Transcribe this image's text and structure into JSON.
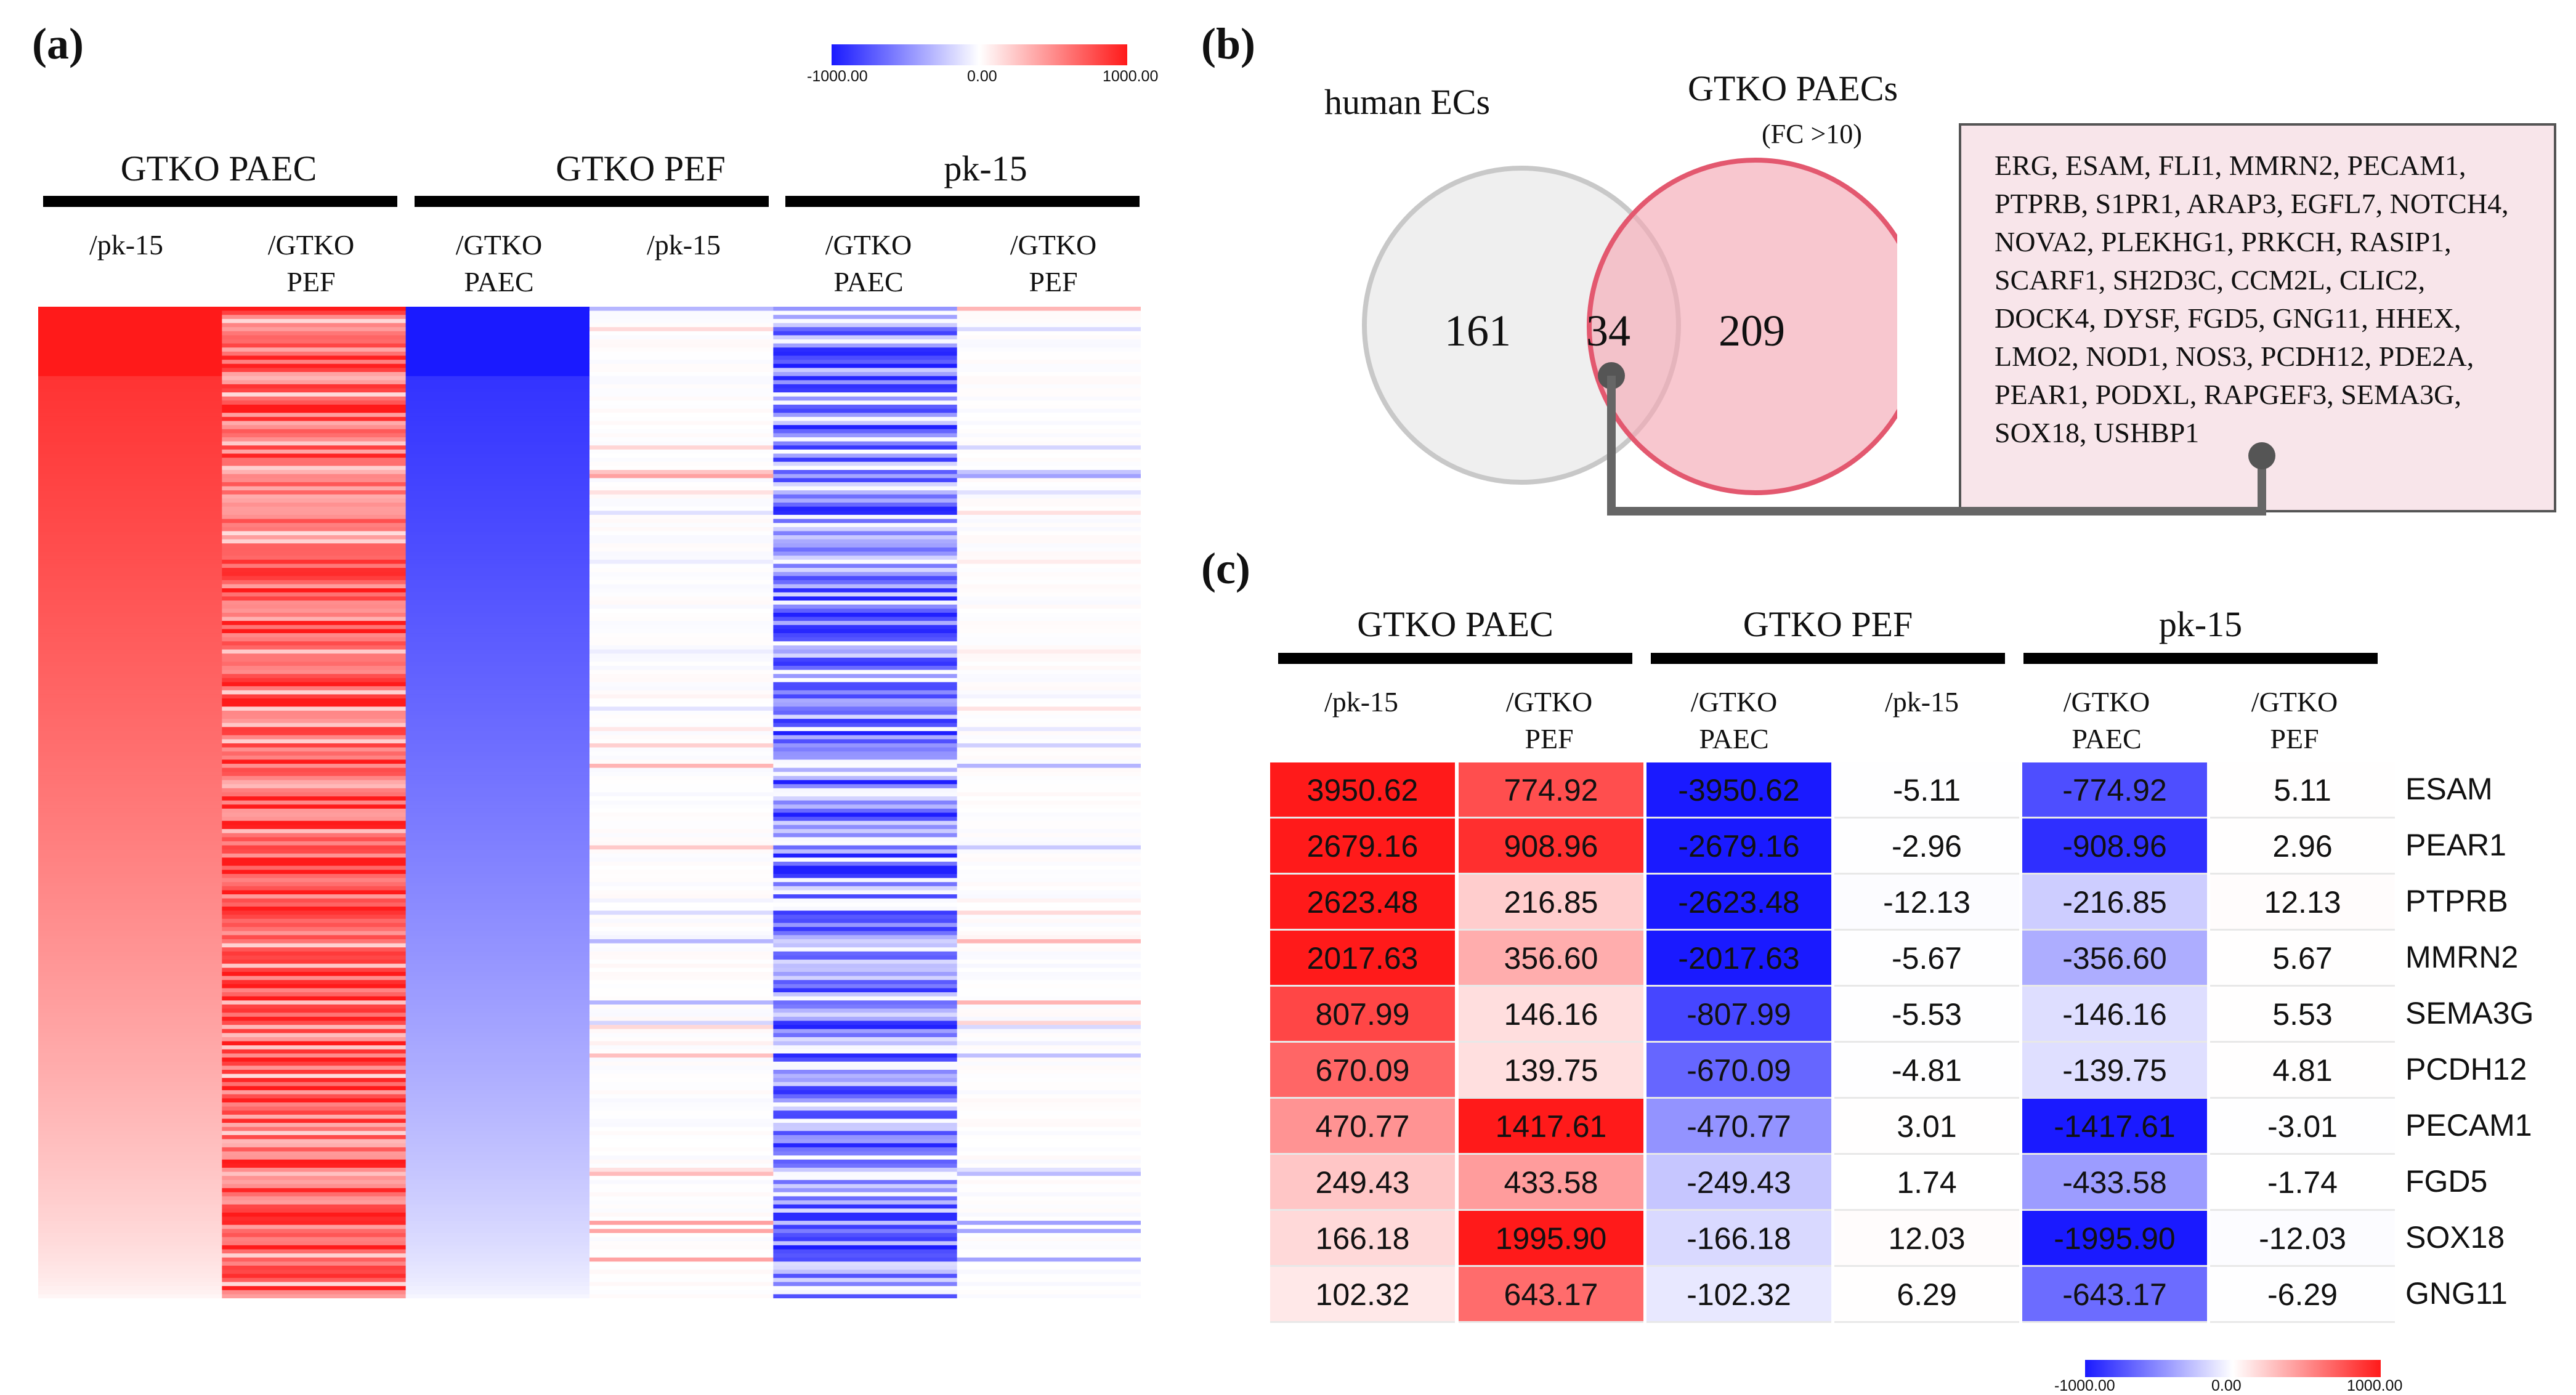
{
  "panels": {
    "a": "(a)",
    "b": "(b)",
    "c": "(c)"
  },
  "colorbar": {
    "min_label": "-1000.00",
    "mid_label": "0.00",
    "max_label": "1000.00",
    "min": -1000,
    "max": 1000,
    "neg_color": "#1a1aff",
    "zero_color": "#ffffff",
    "pos_color": "#ff1a1a"
  },
  "groups": [
    {
      "title": "GTKO PAEC",
      "subcols": [
        "/pk-15",
        "/GTKO\nPEF"
      ]
    },
    {
      "title": "GTKO PEF",
      "subcols": [
        "/GTKO\nPAEC",
        "/pk-15"
      ]
    },
    {
      "title": "pk-15",
      "subcols": [
        "/GTKO\nPAEC",
        "/GTKO\nPEF"
      ]
    }
  ],
  "venn": {
    "left_label": "human ECs",
    "right_label": "GTKO PAECs",
    "right_sublabel": "(FC >10)",
    "left_only": "161",
    "overlap": "34",
    "right_only": "209",
    "gene_list": "ERG, ESAM, FLI1, MMRN2, PECAM1, PTPRB, S1PR1, ARAP3, EGFL7, NOTCH4, NOVA2, PLEKHG1, PRKCH, RASIP1, SCARF1, SH2D3C, CCM2L, CLIC2, DOCK4, DYSF, FGD5, GNG11, HHEX, LMO2, NOD1, NOS3, PCDH12, PDE2A, PEAR1, PODXL, RAPGEF3, SEMA3G, SOX18, USHBP1"
  },
  "chart_data": [
    {
      "type": "heatmap",
      "panel": "a",
      "columns": [
        "GTKO PAEC /pk-15",
        "GTKO PAEC /GTKO PEF",
        "GTKO PEF /GTKO PAEC",
        "GTKO PEF /pk-15",
        "pk-15 /GTKO PAEC",
        "pk-15 /GTKO PEF"
      ],
      "n_rows": 243,
      "value_range": [
        -1000,
        1000
      ],
      "note": "Rows sorted by GTKO PAEC /pk-15 descending; individual values not labeled"
    },
    {
      "type": "heatmap",
      "panel": "c",
      "columns": [
        "GTKO PAEC /pk-15",
        "GTKO PAEC /GTKO PEF",
        "GTKO PEF /GTKO PAEC",
        "GTKO PEF /pk-15",
        "pk-15 /GTKO PAEC",
        "pk-15 /GTKO PEF"
      ],
      "value_range": [
        -1000,
        1000
      ],
      "rows": [
        {
          "gene": "ESAM",
          "values": [
            "3950.62",
            "774.92",
            "-3950.62",
            "-5.11",
            "-774.92",
            "5.11"
          ]
        },
        {
          "gene": "PEAR1",
          "values": [
            "2679.16",
            "908.96",
            "-2679.16",
            "-2.96",
            "-908.96",
            "2.96"
          ]
        },
        {
          "gene": "PTPRB",
          "values": [
            "2623.48",
            "216.85",
            "-2623.48",
            "-12.13",
            "-216.85",
            "12.13"
          ]
        },
        {
          "gene": "MMRN2",
          "values": [
            "2017.63",
            "356.60",
            "-2017.63",
            "-5.67",
            "-356.60",
            "5.67"
          ]
        },
        {
          "gene": "SEMA3G",
          "values": [
            "807.99",
            "146.16",
            "-807.99",
            "-5.53",
            "-146.16",
            "5.53"
          ]
        },
        {
          "gene": "PCDH12",
          "values": [
            "670.09",
            "139.75",
            "-670.09",
            "-4.81",
            "-139.75",
            "4.81"
          ]
        },
        {
          "gene": "PECAM1",
          "values": [
            "470.77",
            "1417.61",
            "-470.77",
            "3.01",
            "-1417.61",
            "-3.01"
          ]
        },
        {
          "gene": "FGD5",
          "values": [
            "249.43",
            "433.58",
            "-249.43",
            "1.74",
            "-433.58",
            "-1.74"
          ]
        },
        {
          "gene": "SOX18",
          "values": [
            "166.18",
            "1995.90",
            "-166.18",
            "12.03",
            "-1995.90",
            "-12.03"
          ]
        },
        {
          "gene": "GNG11",
          "values": [
            "102.32",
            "643.17",
            "-102.32",
            "6.29",
            "-643.17",
            "-6.29"
          ]
        }
      ]
    }
  ]
}
